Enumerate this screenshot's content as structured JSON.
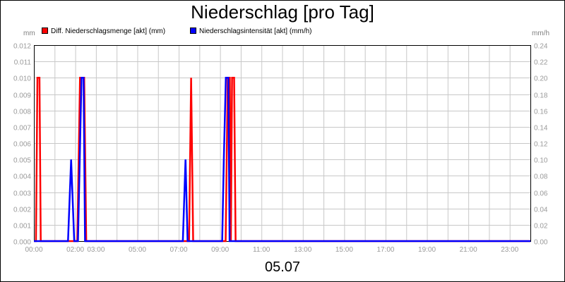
{
  "chart_data": {
    "type": "line",
    "title": "Niederschlag [pro Tag]",
    "xlabel": "05.07",
    "ylabel_left": "mm",
    "ylabel_right": "mm/h",
    "grid": true,
    "legend_position": "top-left",
    "x_tick_labels": [
      "00:00",
      "02:00",
      "03:00",
      "05:00",
      "07:00",
      "09:00",
      "11:00",
      "13:00",
      "15:00",
      "17:00",
      "19:00",
      "21:00",
      "23:00"
    ],
    "x_tick_hours": [
      0,
      2,
      3,
      5,
      7,
      9,
      11,
      13,
      15,
      17,
      19,
      21,
      23
    ],
    "xlim": [
      0,
      24
    ],
    "ylim_left": [
      0,
      0.012
    ],
    "ylim_right": [
      0,
      0.24
    ],
    "y_left_ticks": [
      "0.000",
      "0.001",
      "0.002",
      "0.003",
      "0.004",
      "0.005",
      "0.006",
      "0.007",
      "0.008",
      "0.009",
      "0.010",
      "0.011",
      "0.012"
    ],
    "y_right_ticks": [
      "0.00",
      "0.02",
      "0.04",
      "0.06",
      "0.08",
      "0.10",
      "0.12",
      "0.14",
      "0.16",
      "0.18",
      "0.20",
      "0.22",
      "0.24"
    ],
    "series": [
      {
        "name": "Diff. Niederschlagsmenge [akt] (mm)",
        "axis": "left",
        "color": "#ff0000",
        "points": [
          [
            0,
            0
          ],
          [
            0.1,
            0
          ],
          [
            0.17,
            0.01
          ],
          [
            0.27,
            0.01
          ],
          [
            0.33,
            0
          ],
          [
            2.1,
            0
          ],
          [
            2.23,
            0.01
          ],
          [
            2.43,
            0.01
          ],
          [
            2.53,
            0
          ],
          [
            7.5,
            0
          ],
          [
            7.6,
            0.01
          ],
          [
            7.7,
            0
          ],
          [
            9.27,
            0
          ],
          [
            9.37,
            0.01
          ],
          [
            9.47,
            0.01
          ],
          [
            9.52,
            0
          ],
          [
            9.58,
            0.01
          ],
          [
            9.68,
            0.01
          ],
          [
            9.75,
            0
          ],
          [
            24,
            0
          ]
        ]
      },
      {
        "name": "Niederschlagsintensität [akt] (mm/h)",
        "axis": "right",
        "color": "#0000ff",
        "points": [
          [
            0,
            0
          ],
          [
            1.65,
            0
          ],
          [
            1.8,
            0.1
          ],
          [
            1.95,
            0
          ],
          [
            2.13,
            0
          ],
          [
            2.3,
            0.2
          ],
          [
            2.4,
            0.2
          ],
          [
            2.47,
            0
          ],
          [
            7.2,
            0
          ],
          [
            7.33,
            0.1
          ],
          [
            7.43,
            0
          ],
          [
            9.1,
            0
          ],
          [
            9.18,
            0.1
          ],
          [
            9.28,
            0.2
          ],
          [
            9.4,
            0.2
          ],
          [
            9.46,
            0
          ],
          [
            24,
            0
          ]
        ]
      }
    ]
  }
}
